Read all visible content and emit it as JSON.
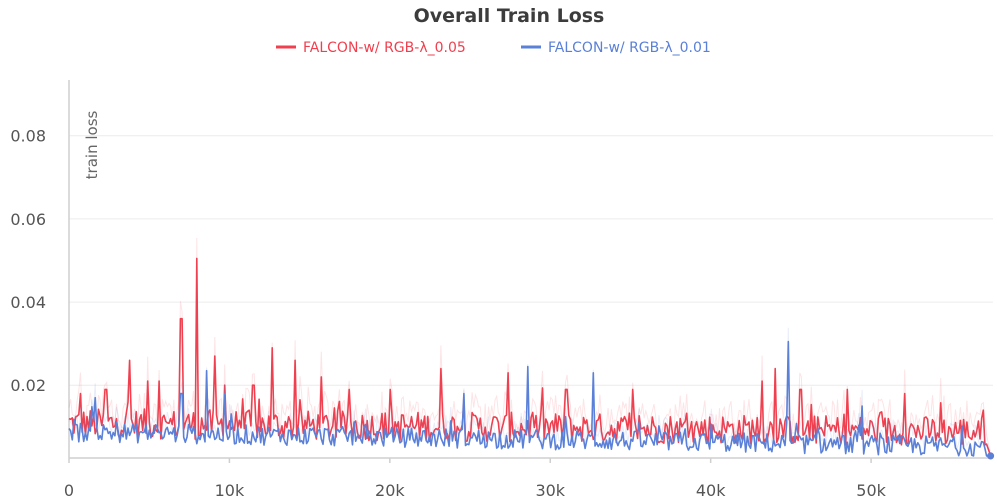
{
  "chart_data": {
    "type": "line",
    "title": "Overall Train Loss",
    "ylabel": "train loss",
    "xlabel": "",
    "xlim": [
      0,
      57600
    ],
    "ylim": [
      0.0025,
      0.091
    ],
    "x_ticks": [
      0,
      10000,
      20000,
      30000,
      40000,
      50000
    ],
    "x_tick_labels": [
      "0",
      "10k",
      "20k",
      "30k",
      "40k",
      "50k"
    ],
    "y_ticks": [
      0.02,
      0.04,
      0.06,
      0.08
    ],
    "y_tick_labels": [
      "0.02",
      "0.04",
      "0.06",
      "0.08"
    ],
    "grid": true,
    "legend_position": "top-center",
    "series": [
      {
        "name": "FALCON-w/ RGB-λ_0.05",
        "color": "#f0404f",
        "baseline": 0.0105,
        "baseline_end": 0.0085,
        "noise": 0.0045,
        "spikes": [
          [
            700,
            0.018
          ],
          [
            2300,
            0.019
          ],
          [
            3800,
            0.026
          ],
          [
            4900,
            0.021
          ],
          [
            5600,
            0.021
          ],
          [
            7000,
            0.036
          ],
          [
            8000,
            0.0505
          ],
          [
            9100,
            0.027
          ],
          [
            9700,
            0.02
          ],
          [
            11500,
            0.02
          ],
          [
            12700,
            0.029
          ],
          [
            14100,
            0.026
          ],
          [
            15700,
            0.022
          ],
          [
            17500,
            0.019
          ],
          [
            20000,
            0.019
          ],
          [
            23200,
            0.024
          ],
          [
            27400,
            0.023
          ],
          [
            31000,
            0.019
          ],
          [
            35100,
            0.019
          ],
          [
            43200,
            0.021
          ],
          [
            44000,
            0.024
          ],
          [
            45600,
            0.019
          ],
          [
            48500,
            0.019
          ],
          [
            52100,
            0.018
          ],
          [
            57000,
            0.014
          ]
        ],
        "end_value": 0.003
      },
      {
        "name": "FALCON-w/ RGB-λ_0.01",
        "color": "#5a80d8",
        "baseline": 0.0085,
        "baseline_end": 0.005,
        "noise": 0.003,
        "spikes": [
          [
            1600,
            0.017
          ],
          [
            7000,
            0.018
          ],
          [
            8600,
            0.0235
          ],
          [
            9700,
            0.018
          ],
          [
            24600,
            0.018
          ],
          [
            28600,
            0.0245
          ],
          [
            32700,
            0.023
          ],
          [
            44800,
            0.0305
          ],
          [
            49400,
            0.015
          ]
        ],
        "end_value": 0.003
      }
    ]
  }
}
